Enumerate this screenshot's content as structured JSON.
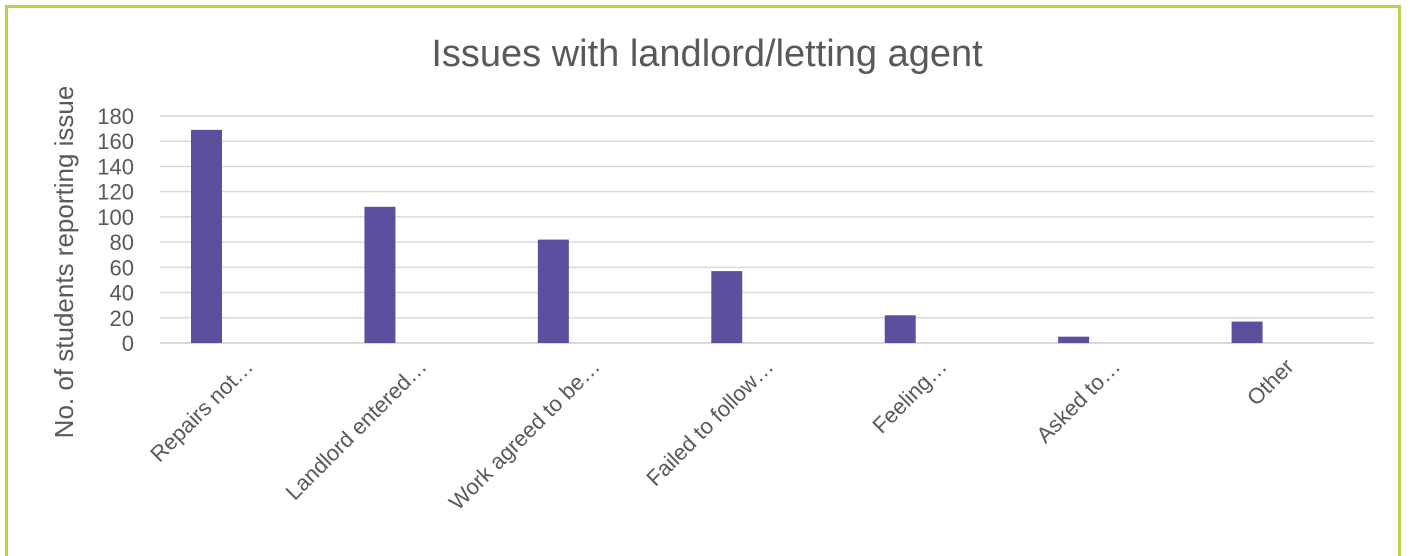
{
  "chart_data": {
    "type": "bar",
    "title": "Issues with landlord/letting agent",
    "xlabel": "",
    "ylabel": "No. of students reporting issue",
    "categories": [
      "Repairs not…",
      "Landlord entered…",
      "Work agreed to be…",
      "Failed to follow…",
      "Feeling…",
      "Asked to…",
      "Other"
    ],
    "values": [
      169,
      108,
      82,
      57,
      22,
      5,
      17
    ],
    "ylim": [
      0,
      180
    ],
    "yticks": [
      "0",
      "20",
      "40",
      "60",
      "80",
      "100",
      "120",
      "140",
      "160",
      "180"
    ],
    "grid": true,
    "legend": "none",
    "bar_color": "#5e4e9e",
    "grid_color": "#d9d9d9",
    "border_color": "#bcd14a"
  }
}
